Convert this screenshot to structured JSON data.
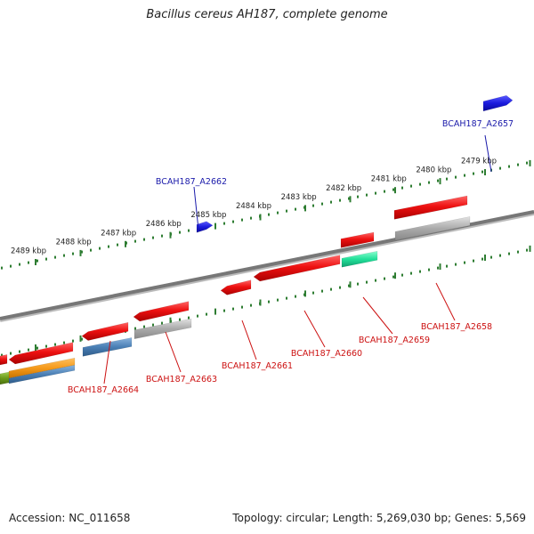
{
  "title": "Bacillus cereus AH187, complete genome",
  "footer": {
    "accession": "Accession: NC_011658",
    "stats": "Topology: circular; Length: 5,269,030 bp; Genes: 5,569"
  },
  "colors": {
    "backbone": "#777777",
    "tick": "#2e7d32",
    "label_top": "#1a1aaa",
    "label_bottom": "#cc1111",
    "gene_red": "#ee1111",
    "gene_blue": "#1a1add",
    "gene_grey": "#aaaaaa",
    "gene_steel": "#4a7fb5",
    "gene_orange": "#f59a1a",
    "gene_teal": "#22e09a",
    "gene_olive": "#6b9a1a"
  },
  "scale_labels": [
    "2479 kbp",
    "2480 kbp",
    "2481 kbp",
    "2482 kbp",
    "2483 kbp",
    "2484 kbp",
    "2485 kbp",
    "2486 kbp",
    "2487 kbp",
    "2488 kbp",
    "2489 kbp"
  ],
  "gene_labels_top": [
    "BCAH187_A2657",
    "BCAH187_A2662"
  ],
  "gene_labels_bottom": [
    "BCAH187_A2658",
    "BCAH187_A2659",
    "BCAH187_A2660",
    "BCAH187_A2661",
    "BCAH187_A2663",
    "BCAH187_A2664"
  ]
}
